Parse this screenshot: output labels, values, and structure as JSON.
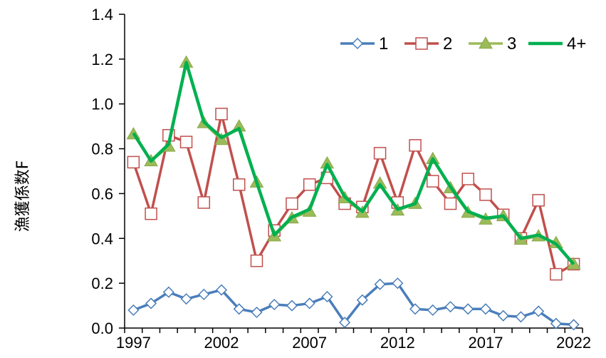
{
  "chart_data": {
    "type": "line",
    "title": "",
    "xlabel": "",
    "ylabel": "漁獲係数F",
    "x": [
      1997,
      1998,
      1999,
      2000,
      2001,
      2002,
      2003,
      2004,
      2005,
      2006,
      2007,
      2008,
      2009,
      2010,
      2011,
      2012,
      2013,
      2014,
      2015,
      2016,
      2017,
      2018,
      2019,
      2020,
      2021,
      2022
    ],
    "xticks": [
      "1997",
      "2002",
      "2007",
      "2012",
      "2017",
      "2022"
    ],
    "yticks": [
      "0.0",
      "0.2",
      "0.4",
      "0.6",
      "0.8",
      "1.0",
      "1.2",
      "1.4"
    ],
    "ylim": [
      0,
      1.4
    ],
    "xlim": [
      1997,
      2022
    ],
    "legend_position": "top-right",
    "grid": false,
    "series": [
      {
        "name": "1",
        "color": "#4a7ebb",
        "marker": "diamond-open",
        "values": [
          0.08,
          0.11,
          0.16,
          0.13,
          0.15,
          0.17,
          0.085,
          0.07,
          0.105,
          0.1,
          0.11,
          0.14,
          0.025,
          0.125,
          0.195,
          0.2,
          0.085,
          0.08,
          0.095,
          0.085,
          0.085,
          0.055,
          0.05,
          0.075,
          0.02,
          0.015
        ]
      },
      {
        "name": "2",
        "color": "#c0504d",
        "marker": "square-open",
        "values": [
          0.74,
          0.51,
          0.86,
          0.83,
          0.56,
          0.955,
          0.64,
          0.3,
          0.435,
          0.555,
          0.64,
          0.67,
          0.555,
          0.54,
          0.78,
          0.56,
          0.815,
          0.655,
          0.555,
          0.665,
          0.595,
          0.505,
          0.4,
          0.57,
          0.24,
          0.285
        ]
      },
      {
        "name": "3",
        "color": "#9bbb59",
        "marker": "triangle-filled",
        "values": [
          0.865,
          0.745,
          0.81,
          1.185,
          0.915,
          0.84,
          0.9,
          0.65,
          0.41,
          0.49,
          0.52,
          0.735,
          0.58,
          0.515,
          0.645,
          0.525,
          0.555,
          0.755,
          0.625,
          0.515,
          0.485,
          0.5,
          0.395,
          0.41,
          0.38,
          0.285
        ]
      },
      {
        "name": "4+",
        "color": "#00b050",
        "marker": "none",
        "values": [
          0.87,
          0.745,
          0.82,
          1.185,
          0.92,
          0.85,
          0.89,
          0.65,
          0.415,
          0.495,
          0.53,
          0.73,
          0.585,
          0.52,
          0.64,
          0.53,
          0.555,
          0.755,
          0.63,
          0.52,
          0.49,
          0.5,
          0.4,
          0.415,
          0.375,
          0.285
        ]
      }
    ]
  }
}
